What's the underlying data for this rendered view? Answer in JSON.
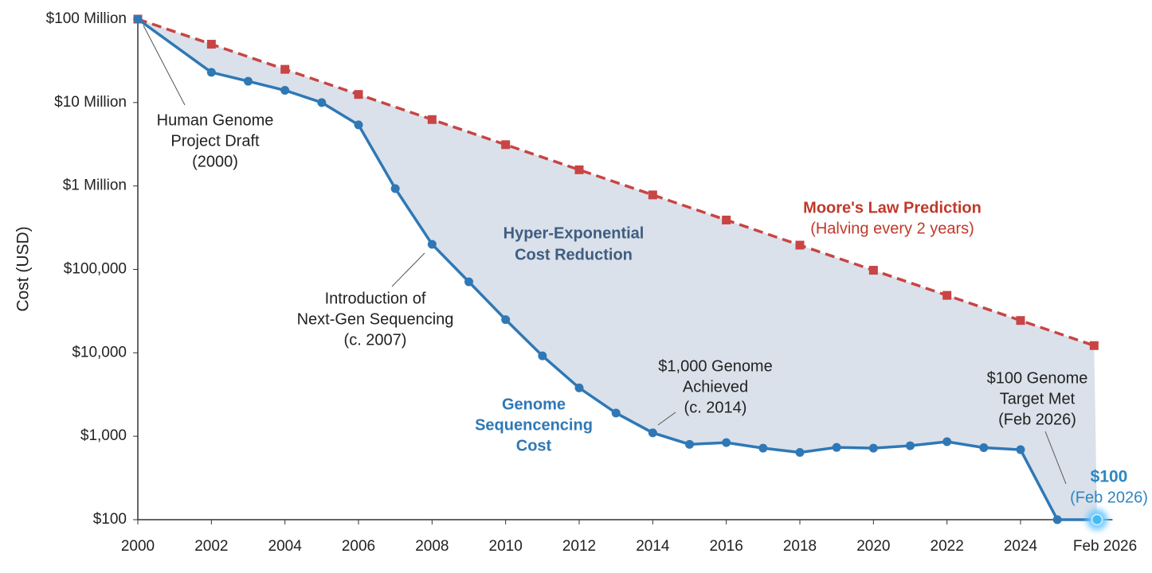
{
  "chart_data": {
    "type": "line",
    "y_label": "Cost (USD)",
    "log_y": true,
    "grid": false,
    "xlim": [
      2000,
      2026.5
    ],
    "ylim": [
      100,
      100000000
    ],
    "xticks": [
      2000,
      2002,
      2004,
      2006,
      2008,
      2010,
      2012,
      2014,
      2016,
      2018,
      2020,
      2022,
      2024,
      {
        "value": 2026.08,
        "label": "Feb 2026"
      }
    ],
    "yticks": [
      {
        "value": 100,
        "label": "$100"
      },
      {
        "value": 1000,
        "label": "$1,000"
      },
      {
        "value": 10000,
        "label": "$10,000"
      },
      {
        "value": 100000,
        "label": "$100,000"
      },
      {
        "value": 1000000,
        "label": "$1 Million"
      },
      {
        "value": 10000000,
        "label": "$10 Million"
      },
      {
        "value": 100000000,
        "label": "$100 Million"
      }
    ],
    "series": [
      {
        "color": "#c94444",
        "dashed": true,
        "marker": "square",
        "x": [
          2000,
          2002,
          2004,
          2006,
          2008,
          2010,
          2012,
          2014,
          2016,
          2018,
          2020,
          2022,
          2024,
          2026
        ],
        "values": [
          100000000,
          50000000,
          25000000,
          12500000,
          6250000,
          3125000,
          1562500,
          781250,
          390625,
          195312.5,
          97656.25,
          48828.125,
          24414.0625,
          12207.03125
        ]
      },
      {
        "color": "#2f78b5",
        "dashed": false,
        "marker": "circle",
        "x": [
          2000,
          2002,
          2003,
          2004,
          2005,
          2006,
          2007,
          2008,
          2009,
          2010,
          2011,
          2012,
          2013,
          2014,
          2015,
          2016,
          2017,
          2018,
          2019,
          2020,
          2021,
          2022,
          2023,
          2024,
          2025,
          2026.08
        ],
        "values": [
          100000000,
          23000000,
          18000000,
          14000000,
          10000000,
          5400000,
          930000,
          200000,
          71000,
          25000,
          9200,
          3800,
          1900,
          1100,
          800,
          840,
          720,
          640,
          735,
          720,
          770,
          860,
          730,
          690,
          100,
          100
        ]
      }
    ],
    "annotations": [
      {
        "lines": [
          "Human Genome",
          "Project Draft",
          "(2000)"
        ]
      },
      {
        "lines": [
          "Hyper-Exponential",
          "Cost Reduction"
        ]
      },
      {
        "lines": [
          "Introduction of",
          "Next-Gen Sequencing",
          "(c. 2007)"
        ]
      },
      {
        "lines": [
          "$1,000 Genome",
          "Achieved",
          "(c. 2014)"
        ]
      },
      {
        "lines": [
          "Genome",
          "Sequencencing",
          "Cost"
        ]
      },
      {
        "lines": [
          "$100 Genome",
          "Target Met",
          "(Feb 2026)"
        ]
      },
      {
        "lines": [
          "$100",
          "(Feb 2026)"
        ]
      },
      {
        "lines": [
          "Moore's Law Prediction",
          "(Halving every 2 years)"
        ]
      }
    ]
  }
}
